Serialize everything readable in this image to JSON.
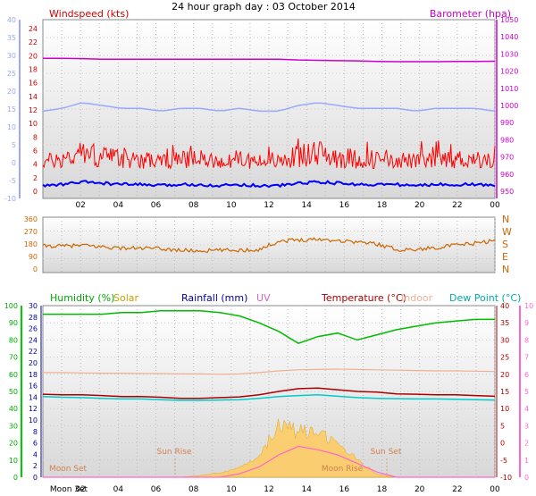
{
  "page_title": "24 hour graph day : 03 October 2014",
  "colors": {
    "wind": "#ff0000",
    "wind_avg": "#0000ff",
    "wind_axis": "#9aa8ff",
    "baro": "#cc00cc",
    "dir": "#cc6600",
    "humidity": "#00bb00",
    "solar": "#c8a000",
    "rain": "#000099",
    "uv": "#cc66cc",
    "temp": "#aa0000",
    "indoor": "#f0b090",
    "dew": "#00cccc",
    "solar_fill": "#ffcc66",
    "uv_line": "#ff66cc"
  },
  "top": {
    "title_left": "Windspeed (kts)",
    "title_right": "Barometer (hpa)",
    "left_ticks": [
      "40",
      "35",
      "30",
      "25",
      "20",
      "15",
      "10",
      "5",
      "0",
      "-5",
      "-10"
    ],
    "inner_ticks": [
      "24",
      "22",
      "20",
      "18",
      "16",
      "14",
      "12",
      "10",
      "8",
      "6",
      "4",
      "2",
      "0"
    ],
    "right_ticks": [
      "1050",
      "1040",
      "1030",
      "1020",
      "1010",
      "1000",
      "990",
      "980",
      "970",
      "960",
      "950"
    ]
  },
  "mid": {
    "left_ticks": [
      "360",
      "270",
      "180",
      "90",
      "0"
    ],
    "dir_labels": [
      "N",
      "W",
      "S",
      "E",
      "N"
    ]
  },
  "bottom": {
    "legend": {
      "humidity": "Humidity (%)",
      "solar": "Solar",
      "rainfall": "Rainfall (mm)",
      "uv": "UV",
      "temperature": "Temperature (°C)",
      "indoor": "Indoor",
      "dewpoint": "Dew Point (°C)"
    },
    "hum_ticks": [
      "100",
      "90",
      "80",
      "70",
      "60",
      "50",
      "40",
      "30",
      "20",
      "10",
      "0"
    ],
    "rain_ticks": [
      "30",
      "28",
      "26",
      "24",
      "22",
      "20",
      "18",
      "16",
      "14",
      "12",
      "10",
      "8",
      "6",
      "4",
      "2",
      "0"
    ],
    "temp_ticks": [
      "40",
      "35",
      "30",
      "25",
      "20",
      "15",
      "10",
      "5",
      "0",
      "-5",
      "-10"
    ],
    "uv_ticks": [
      "10",
      "9",
      "8",
      "7",
      "6",
      "5",
      "4",
      "3",
      "2",
      "1",
      "0"
    ],
    "annotations": {
      "sun_rise": "Sun Rise",
      "sun_set": "Sun Set",
      "moon_set": "Moon Set",
      "moon_rise": "Moon Rise"
    },
    "x_extra": "Moon 3et"
  },
  "x_labels": [
    "02",
    "04",
    "06",
    "08",
    "10",
    "12",
    "14",
    "16",
    "18",
    "20",
    "22",
    "00"
  ],
  "chart_data": [
    {
      "type": "line",
      "title": "Windspeed (kts)",
      "x": [
        "01",
        "02",
        "03",
        "04",
        "05",
        "06",
        "07",
        "08",
        "09",
        "10",
        "11",
        "12",
        "13",
        "14",
        "15",
        "16",
        "17",
        "18",
        "19",
        "20",
        "21",
        "22",
        "23",
        "00"
      ],
      "ylim": [
        -10,
        40
      ],
      "series": [
        {
          "name": "Windspeed (kts)",
          "values": [
            3,
            4,
            6,
            5,
            4,
            4,
            3,
            4,
            4,
            3,
            4,
            3,
            3,
            5,
            6,
            5,
            4,
            4,
            4,
            3,
            4,
            4,
            4,
            3
          ]
        },
        {
          "name": "Barometer (hpa)",
          "axis": "right",
          "ylim": [
            950,
            1050
          ],
          "values": [
            1027.5,
            1027.5,
            1027.3,
            1027,
            1027,
            1027,
            1027,
            1027,
            1027,
            1027,
            1027,
            1027,
            1027,
            1026.5,
            1026.3,
            1026.1,
            1026,
            1025.7,
            1025.5,
            1025.5,
            1025.5,
            1025.6,
            1025.7,
            1025.8
          ]
        }
      ]
    },
    {
      "type": "line",
      "x": [
        "01",
        "02",
        "03",
        "04",
        "05",
        "06",
        "07",
        "08",
        "09",
        "10",
        "11",
        "12",
        "13",
        "14",
        "15",
        "16",
        "17",
        "18",
        "19",
        "20",
        "21",
        "22",
        "23",
        "00"
      ],
      "ylim": [
        0,
        360
      ],
      "series": [
        {
          "name": "Wind direction",
          "values": [
            165,
            165,
            170,
            160,
            150,
            150,
            145,
            135,
            130,
            135,
            135,
            140,
            200,
            210,
            215,
            205,
            195,
            180,
            140,
            140,
            155,
            170,
            185,
            205
          ]
        }
      ]
    },
    {
      "type": "line",
      "x": [
        "01",
        "02",
        "03",
        "04",
        "05",
        "06",
        "07",
        "08",
        "09",
        "10",
        "11",
        "12",
        "13",
        "14",
        "15",
        "16",
        "17",
        "18",
        "19",
        "20",
        "21",
        "22",
        "23",
        "00"
      ],
      "ylim": [
        0,
        100
      ],
      "series": [
        {
          "name": "Humidity (%)",
          "values": [
            95,
            95,
            95,
            95,
            96,
            96,
            97,
            97,
            97,
            96,
            94,
            90,
            85,
            78,
            82,
            84,
            80,
            83,
            86,
            88,
            90,
            91,
            92,
            92
          ]
        },
        {
          "name": "Temperature (°C)",
          "axis": "right",
          "ylim": [
            -10,
            40
          ],
          "values": [
            14.2,
            14,
            14,
            13.8,
            13.5,
            13.5,
            13.3,
            13,
            13,
            13.2,
            13.4,
            14,
            15,
            15.8,
            16,
            15.5,
            15,
            14.8,
            14.3,
            14.2,
            14,
            14,
            13.8,
            13.6
          ]
        },
        {
          "name": "Indoor",
          "axis": "right",
          "ylim": [
            -10,
            40
          ],
          "values": [
            20.5,
            20.5,
            20.4,
            20.3,
            20.3,
            20.2,
            20.2,
            20.1,
            20.1,
            20,
            20.1,
            20.5,
            21,
            21.3,
            21.4,
            21.5,
            21.4,
            21.3,
            21.2,
            21.1,
            21,
            21,
            20.9,
            20.8
          ]
        },
        {
          "name": "Dew Point (°C)",
          "axis": "right",
          "ylim": [
            -10,
            40
          ],
          "values": [
            13.5,
            13.3,
            13.2,
            13,
            12.8,
            12.8,
            12.6,
            12.4,
            12.4,
            12.5,
            12.6,
            13,
            13.5,
            13.8,
            14,
            13.6,
            13.2,
            13,
            12.9,
            12.8,
            12.8,
            12.7,
            12.6,
            12.5
          ]
        },
        {
          "name": "Solar",
          "axis": "rain",
          "ylim": [
            0,
            30
          ],
          "values": [
            0,
            0,
            0,
            0,
            0,
            0,
            0,
            0,
            0.3,
            0.8,
            1.5,
            4,
            9,
            8,
            7.5,
            6,
            3,
            0.5,
            0,
            0,
            0,
            0,
            0,
            0
          ]
        },
        {
          "name": "UV",
          "axis": "uv",
          "ylim": [
            0,
            10
          ],
          "values": [
            0,
            0,
            0,
            0,
            0,
            0,
            0,
            0,
            0,
            0,
            0.2,
            0.6,
            1.3,
            1.8,
            1.6,
            1.3,
            0.8,
            0.3,
            0,
            0,
            0,
            0,
            0,
            0
          ]
        }
      ]
    }
  ]
}
